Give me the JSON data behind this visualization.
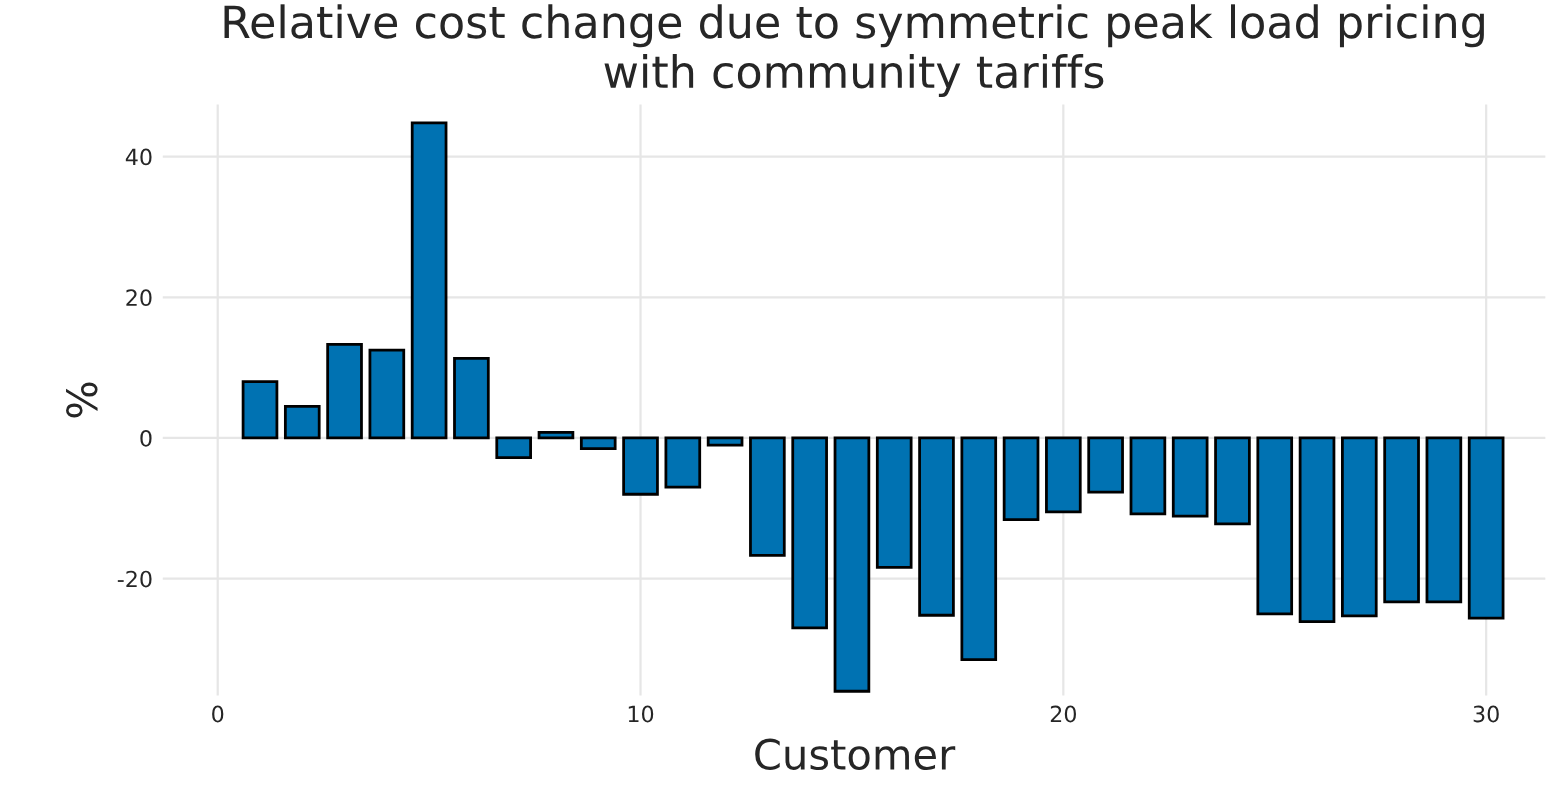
{
  "chart_data": {
    "type": "bar",
    "title": "Relative cost change due to symmetric peak load pricing\nwith community tariffs",
    "xlabel": "Customer",
    "ylabel": "%",
    "x": [
      1,
      2,
      3,
      4,
      5,
      6,
      7,
      8,
      9,
      10,
      11,
      12,
      13,
      14,
      15,
      16,
      17,
      18,
      19,
      20,
      21,
      22,
      23,
      24,
      25,
      26,
      27,
      28,
      29,
      30
    ],
    "series": [
      {
        "color": "#0072b2",
        "values": [
          8,
          4.5,
          13.3,
          12.5,
          44.8,
          11.3,
          -2.8,
          0.8,
          -1.5,
          -8,
          -7,
          -1,
          -16.7,
          -27,
          -36,
          -18.4,
          -25.2,
          -31.5,
          -11.6,
          -10.5,
          -7.7,
          -10.8,
          -11.1,
          -12.2,
          -25,
          -26.1,
          -25.3,
          -23.3,
          -23.3,
          -25.6
        ]
      }
    ],
    "xlim": [
      -1.3,
      31.4
    ],
    "ylim": [
      -36.6,
      47.4
    ],
    "xticks": [
      0,
      10,
      20,
      30
    ],
    "yticks": [
      -20,
      0,
      20,
      40
    ],
    "grid": true,
    "legend": false
  }
}
